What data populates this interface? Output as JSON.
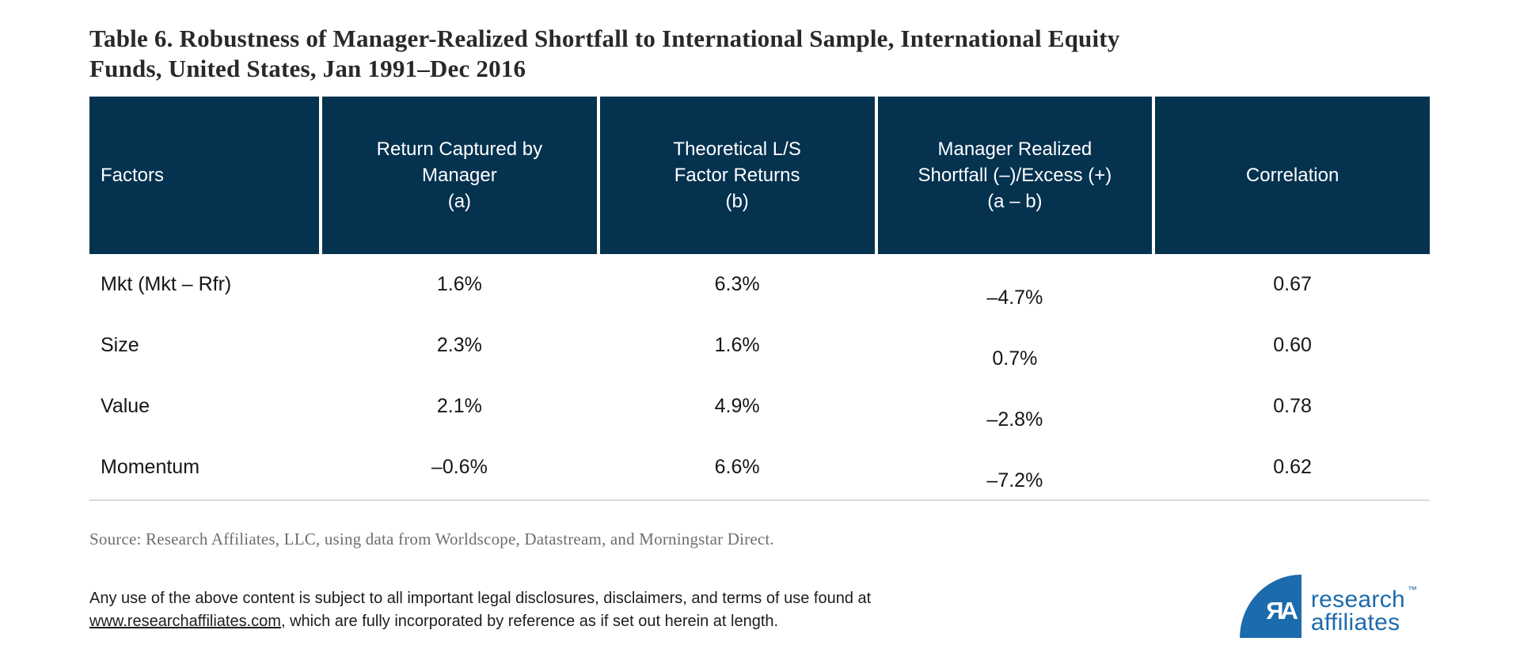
{
  "title": {
    "line1": "Table 6. Robustness of Manager-Realized Shortfall to International Sample, International Equity",
    "line2": "Funds, United States, Jan 1991–Dec 2016"
  },
  "colors": {
    "table_header_bg": "#04324F",
    "header_text": "#FFFFFF",
    "body_text": "#161616",
    "title_text": "#29282B",
    "source_text": "#6E6E6E",
    "separator": "#D9D9D9",
    "logo_blue": "#1C6BAD"
  },
  "table": {
    "columns": [
      {
        "id": "factors",
        "lines": [
          "Factors"
        ]
      },
      {
        "id": "return-captured-by-manager",
        "lines": [
          "Return Captured by",
          "Manager",
          "(a)"
        ]
      },
      {
        "id": "theoretical-ls-factor-returns",
        "lines": [
          "Theoretical L/S",
          "Factor Returns",
          "(b)"
        ]
      },
      {
        "id": "manager-realized-shortfall",
        "lines": [
          "Manager Realized",
          "Shortfall (–)/Excess (+)",
          "(a – b)"
        ]
      },
      {
        "id": "correlation",
        "lines": [
          "Correlation"
        ]
      }
    ],
    "rows": [
      {
        "factor": "Mkt (Mkt – Rfr)",
        "return_captured": "1.6%",
        "theoretical_ls": "6.3%",
        "shortfall": "–4.7%",
        "correlation": "0.67"
      },
      {
        "factor": "Size",
        "return_captured": "2.3%",
        "theoretical_ls": "1.6%",
        "shortfall": "0.7%",
        "correlation": "0.60"
      },
      {
        "factor": "Value",
        "return_captured": "2.1%",
        "theoretical_ls": "4.9%",
        "shortfall": "–2.8%",
        "correlation": "0.78"
      },
      {
        "factor": "Momentum",
        "return_captured": "–0.6%",
        "theoretical_ls": "6.6%",
        "shortfall": "–7.2%",
        "correlation": "0.62"
      }
    ]
  },
  "source_note": "Source: Research Affiliates, LLC, using data from Worldscope, Datastream, and Morningstar Direct.",
  "disclaimer": {
    "line1": "Any use of the above content is subject to all important legal disclosures, disclaimers, and terms of use found at",
    "link": "www.researchaffiliates.com",
    "line2_rest": ", which are fully incorporated by reference as if set out herein at length."
  },
  "logo": {
    "monogram": "ЯA",
    "line1": "research",
    "line2": "affiliates",
    "trademark": "™"
  }
}
